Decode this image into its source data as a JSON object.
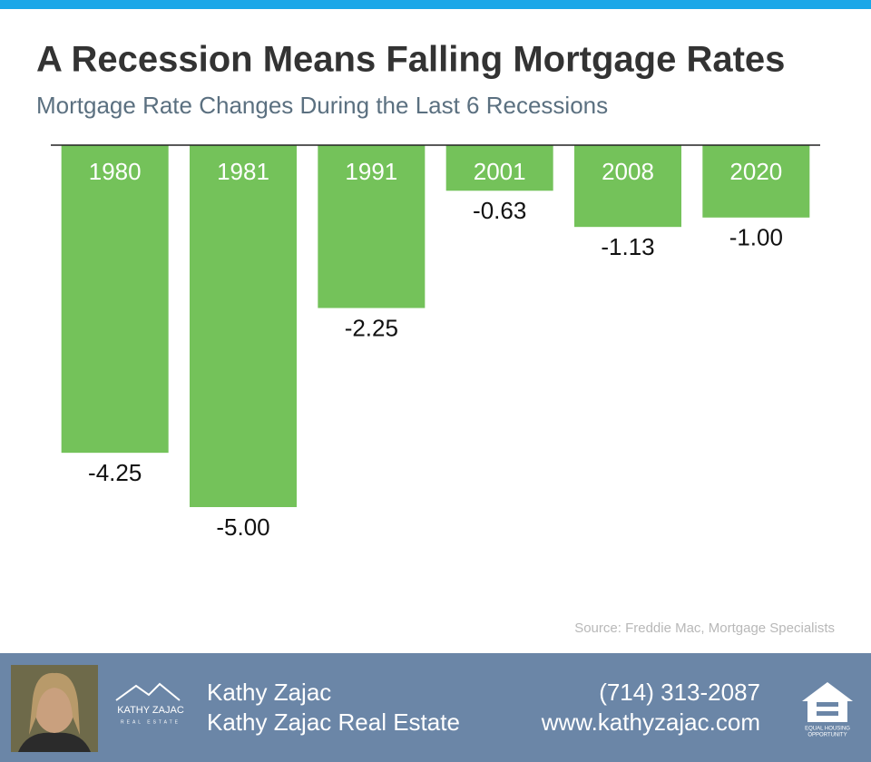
{
  "chart_data": {
    "type": "bar",
    "title": "A Recession Means Falling Mortgage Rates",
    "subtitle": "Mortgage Rate Changes During the Last 6 Recessions",
    "categories": [
      "1980",
      "1981",
      "1991",
      "2001",
      "2008",
      "2020"
    ],
    "values": [
      -4.25,
      -5,
      -2.25,
      -0.63,
      -1.13,
      -1
    ],
    "value_labels": [
      "-4.25",
      "-5.00",
      "-2.25",
      "-0.63",
      "-1.13",
      "-1.00"
    ],
    "color": "#74c25a",
    "source": "Source: Freddie Mac, Mortgage Specialists"
  },
  "footer": {
    "logo_name": "KATHY ZAJAC",
    "logo_tagline": "REAL ESTATE",
    "name": "Kathy Zajac",
    "company": "Kathy Zajac Real Estate",
    "phone": "(714) 313-2087",
    "website": "www.kathyzajac.com",
    "badge_line1": "EQUAL HOUSING",
    "badge_line2": "OPPORTUNITY"
  }
}
